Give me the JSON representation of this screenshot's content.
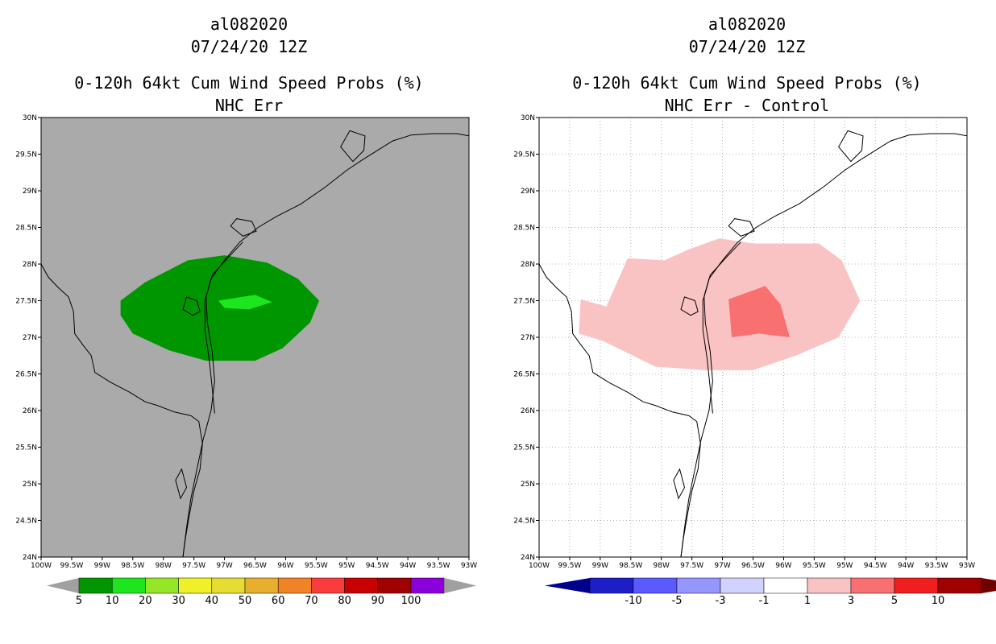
{
  "panels": [
    {
      "storm_id": "al082020",
      "datetime": "07/24/20 12Z",
      "title": "0-120h 64kt Cum Wind Speed Probs (%)",
      "subtitle": "NHC Err",
      "colorbar": {
        "labels": [
          "5",
          "10",
          "20",
          "30",
          "40",
          "50",
          "60",
          "70",
          "80",
          "90",
          "100"
        ],
        "colors": [
          "#009600",
          "#1ee61e",
          "#96e628",
          "#f0f028",
          "#e6dc32",
          "#e6af2d",
          "#f08228",
          "#fa3c3c",
          "#c80000",
          "#a00000",
          "#8c00dc"
        ],
        "end_color": "#a0a0a0"
      },
      "contours": [
        {
          "level": "5-10",
          "color": "#009600"
        },
        {
          "level": "10-20",
          "color": "#1ee61e"
        }
      ]
    },
    {
      "storm_id": "al082020",
      "datetime": "07/24/20 12Z",
      "title": "0-120h 64kt Cum Wind Speed Probs (%)",
      "subtitle": "NHC Err - Control",
      "colorbar": {
        "labels": [
          "-10",
          "-5",
          "-3",
          "-1",
          "1",
          "3",
          "5",
          "10"
        ],
        "colors": [
          "#1e1ec8",
          "#5a5aff",
          "#9696ff",
          "#d2d2ff",
          "#ffffff",
          "#fac3c3",
          "#f87070",
          "#f01e1e",
          "#a00000"
        ],
        "end_left": "#00008c",
        "end_right": "#6e0000"
      },
      "contours": [
        {
          "level": "1-3",
          "color": "#fac3c3"
        },
        {
          "level": "3-5",
          "color": "#f87070"
        }
      ]
    }
  ],
  "axes": {
    "lon_labels": [
      "100W",
      "99.5W",
      "99W",
      "98.5W",
      "98W",
      "97.5W",
      "97W",
      "96.5W",
      "96W",
      "95.5W",
      "95W",
      "94.5W",
      "94W",
      "93.5W",
      "93W"
    ],
    "lat_labels": [
      "24N",
      "24.5N",
      "25N",
      "25.5N",
      "26N",
      "26.5N",
      "27N",
      "27.5N",
      "28N",
      "28.5N",
      "29N",
      "29.5N",
      "30N"
    ],
    "lon_range": [
      -100,
      -93
    ],
    "lat_range": [
      24,
      30
    ]
  },
  "colors": {
    "land_bg": "#aaaaaa",
    "grid": "#b4b4b4"
  }
}
